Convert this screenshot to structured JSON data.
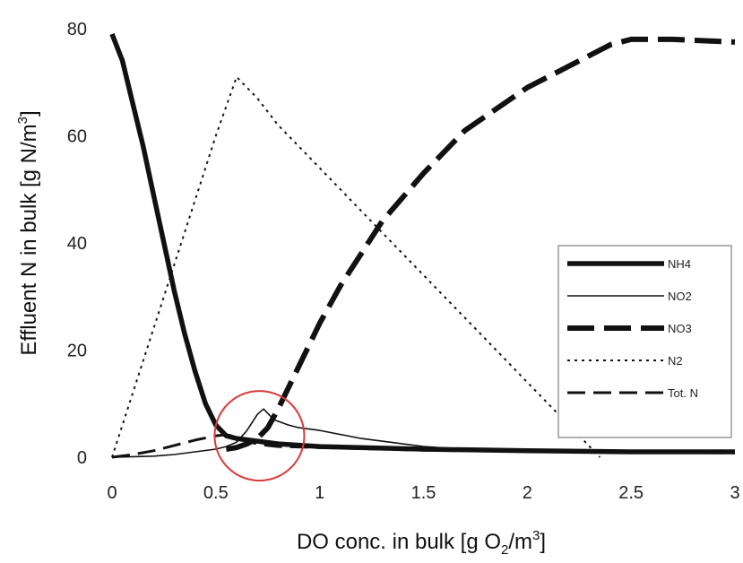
{
  "chart_data": {
    "type": "line",
    "xlabel": {
      "main": "DO conc. in bulk [g O",
      "sub": "2",
      "mid": "/m",
      "sup": "3",
      "end": "]"
    },
    "ylabel": {
      "main": "Effluent N in bulk [g N/m",
      "sup": "3",
      "end": "]"
    },
    "xlim": [
      0,
      3
    ],
    "ylim": [
      0,
      80
    ],
    "xticks": [
      0,
      0.5,
      1,
      1.5,
      2,
      2.5,
      3
    ],
    "xtick_labels": [
      "0",
      "0.5",
      "1",
      "1.5",
      "2",
      "2.5",
      "3"
    ],
    "yticks": [
      0,
      20,
      40,
      60,
      80
    ],
    "ytick_labels": [
      "0",
      "20",
      "40",
      "60",
      "80"
    ],
    "grid": false,
    "legend_position": "right",
    "series": [
      {
        "name": "NH4",
        "style": "thick-solid",
        "x": [
          0,
          0.05,
          0.1,
          0.15,
          0.2,
          0.25,
          0.3,
          0.35,
          0.4,
          0.45,
          0.5,
          0.55,
          0.6,
          0.7,
          0.8,
          1.0,
          1.5,
          2.0,
          2.5,
          3.0
        ],
        "y": [
          79,
          74,
          66,
          58,
          49,
          40,
          31,
          23,
          16,
          10,
          6,
          4,
          3.5,
          3,
          2.5,
          2,
          1.5,
          1.2,
          1,
          1
        ]
      },
      {
        "name": "NO2",
        "style": "thin-solid",
        "x": [
          0,
          0.1,
          0.2,
          0.3,
          0.4,
          0.5,
          0.55,
          0.6,
          0.65,
          0.7,
          0.73,
          0.78,
          0.85,
          0.9,
          1.0,
          1.2,
          1.5,
          1.8,
          2.0,
          2.5,
          3.0
        ],
        "y": [
          0,
          0.1,
          0.2,
          0.5,
          1.0,
          1.5,
          2.0,
          2.8,
          5,
          8,
          9,
          7,
          6,
          5.5,
          5,
          3.5,
          2,
          1.2,
          1,
          0.8,
          0.8
        ]
      },
      {
        "name": "NO3",
        "style": "thick-dashed",
        "x": [
          0.55,
          0.6,
          0.65,
          0.7,
          0.75,
          0.8,
          0.9,
          1.0,
          1.1,
          1.2,
          1.3,
          1.5,
          1.7,
          2.0,
          2.2,
          2.4,
          2.5,
          2.7,
          3.0
        ],
        "y": [
          1.5,
          1.8,
          2.5,
          3.5,
          5.5,
          9,
          17,
          25,
          32,
          38,
          44,
          53,
          61,
          69,
          73,
          77,
          78,
          78,
          77.5
        ]
      },
      {
        "name": "N2",
        "style": "dotted",
        "x": [
          0,
          0.1,
          0.2,
          0.3,
          0.4,
          0.5,
          0.6,
          0.7,
          0.8,
          0.9,
          1.0,
          1.2,
          1.4,
          1.6,
          1.8,
          2.0,
          2.2,
          2.35
        ],
        "y": [
          0,
          12,
          24,
          36,
          48,
          60,
          71,
          67,
          62,
          58,
          54,
          46,
          38,
          30,
          22,
          14,
          6,
          0
        ]
      },
      {
        "name": "Tot. N",
        "style": "long-dashed",
        "x": [
          0,
          0.1,
          0.2,
          0.3,
          0.4,
          0.5,
          0.55,
          0.6,
          0.65,
          0.7,
          0.75,
          0.8,
          1.0,
          1.5,
          2.0,
          2.5,
          3.0
        ],
        "y": [
          0,
          0.5,
          1.2,
          2.2,
          3.2,
          4.0,
          4.2,
          3.8,
          3.0,
          2.5,
          2.2,
          2.0,
          1.8,
          1.3,
          1.1,
          0.9,
          0.8
        ]
      }
    ],
    "annotation": {
      "type": "circle",
      "center": [
        0.71,
        4
      ],
      "color": "#d93a3a"
    }
  }
}
